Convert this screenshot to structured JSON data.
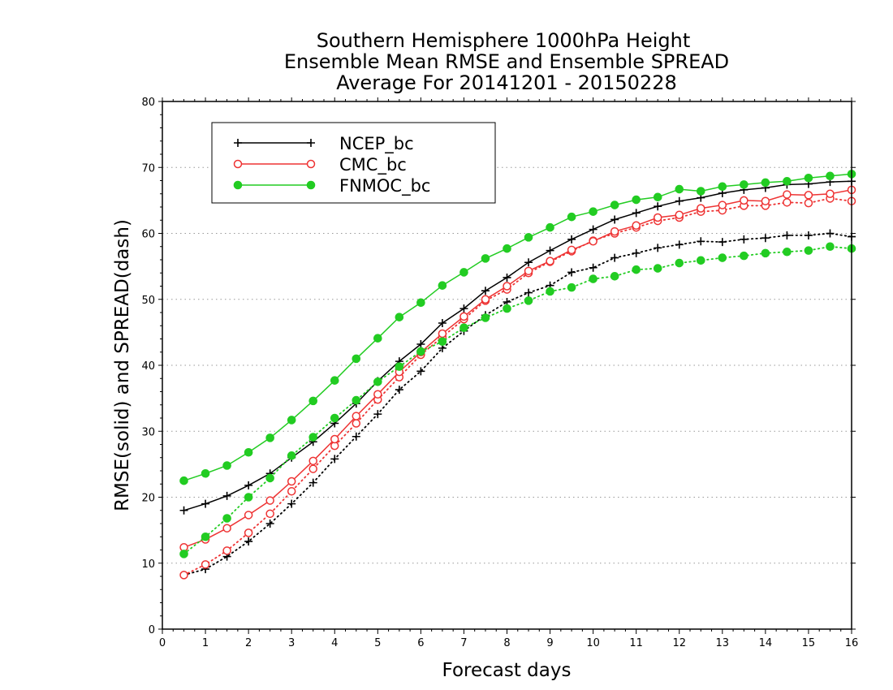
{
  "chart_data": {
    "type": "line",
    "title": [
      "Southern Hemisphere 1000hPa Height",
      "Ensemble Mean RMSE and Ensemble SPREAD",
      "Average For 20141201 - 20150228"
    ],
    "xlabel": "Forecast days",
    "ylabel": "RMSE(solid) and SPREAD(dash)",
    "xlim": [
      0,
      16
    ],
    "ylim": [
      0,
      80
    ],
    "x_ticks": [
      "0",
      "1",
      "2",
      "3",
      "4",
      "5",
      "6",
      "7",
      "8",
      "9",
      "10",
      "11",
      "12",
      "13",
      "14",
      "15",
      "16"
    ],
    "y_ticks": [
      "0",
      "10",
      "20",
      "30",
      "40",
      "50",
      "60",
      "70",
      "80"
    ],
    "grid": "horizontal dotted",
    "legend_position": "top-left",
    "x": [
      0.5,
      1,
      1.5,
      2,
      2.5,
      3,
      3.5,
      4,
      4.5,
      5,
      5.5,
      6,
      6.5,
      7,
      7.5,
      8,
      8.5,
      9,
      9.5,
      10,
      10.5,
      11,
      11.5,
      12,
      12.5,
      13,
      13.5,
      14,
      14.5,
      15,
      15.5,
      16
    ],
    "series": [
      {
        "name": "NCEP_bc",
        "color": "#000000",
        "marker": "plus",
        "rmse": [
          18.0,
          19.0,
          20.2,
          21.8,
          23.6,
          26.0,
          28.4,
          31.2,
          34.2,
          37.6,
          40.6,
          43.2,
          46.4,
          48.6,
          51.3,
          53.3,
          55.6,
          57.4,
          59.1,
          60.6,
          62.1,
          63.1,
          64.1,
          64.9,
          65.4,
          66.1,
          66.6,
          66.9,
          67.4,
          67.5,
          67.8,
          67.9
        ],
        "spread": [
          8.2,
          9.1,
          11.0,
          13.3,
          16.0,
          19.0,
          22.2,
          25.8,
          29.2,
          32.6,
          36.3,
          39.1,
          42.6,
          45.2,
          47.6,
          49.6,
          51.0,
          52.1,
          54.1,
          54.8,
          56.3,
          57.0,
          57.8,
          58.3,
          58.8,
          58.7,
          59.1,
          59.3,
          59.7,
          59.7,
          60.0,
          59.5
        ]
      },
      {
        "name": "CMC_bc",
        "color": "#ee3333",
        "marker": "open-circle",
        "rmse": [
          12.4,
          13.6,
          15.3,
          17.3,
          19.5,
          22.4,
          25.5,
          28.8,
          32.3,
          35.6,
          39.0,
          42.0,
          44.8,
          47.4,
          50.0,
          52.0,
          54.3,
          55.8,
          57.5,
          58.8,
          60.3,
          61.2,
          62.4,
          62.8,
          63.8,
          64.3,
          65.0,
          64.9,
          65.9,
          65.8,
          66.0,
          66.6
        ],
        "spread": [
          8.2,
          9.8,
          11.9,
          14.6,
          17.5,
          20.9,
          24.3,
          27.8,
          31.2,
          34.8,
          38.2,
          41.6,
          44.3,
          47.0,
          49.8,
          51.5,
          54.0,
          55.7,
          57.3,
          58.9,
          60.0,
          60.9,
          61.9,
          62.4,
          63.3,
          63.5,
          64.2,
          64.2,
          64.7,
          64.6,
          65.3,
          64.9
        ]
      },
      {
        "name": "FNMOC_bc",
        "color": "#22cc22",
        "marker": "filled-circle",
        "rmse": [
          22.5,
          23.6,
          24.8,
          26.8,
          29.0,
          31.7,
          34.6,
          37.7,
          41.0,
          44.1,
          47.3,
          49.5,
          52.1,
          54.1,
          56.2,
          57.7,
          59.4,
          60.9,
          62.5,
          63.3,
          64.3,
          65.1,
          65.5,
          66.7,
          66.4,
          67.1,
          67.4,
          67.7,
          67.9,
          68.4,
          68.7,
          69.0
        ],
        "spread": [
          11.4,
          14.0,
          16.8,
          20.0,
          22.9,
          26.3,
          29.1,
          32.0,
          34.7,
          37.5,
          39.8,
          42.1,
          43.6,
          45.7,
          47.2,
          48.6,
          49.8,
          51.2,
          51.8,
          53.1,
          53.5,
          54.5,
          54.7,
          55.5,
          55.9,
          56.3,
          56.6,
          57.0,
          57.2,
          57.4,
          58.0,
          57.7
        ]
      }
    ]
  }
}
